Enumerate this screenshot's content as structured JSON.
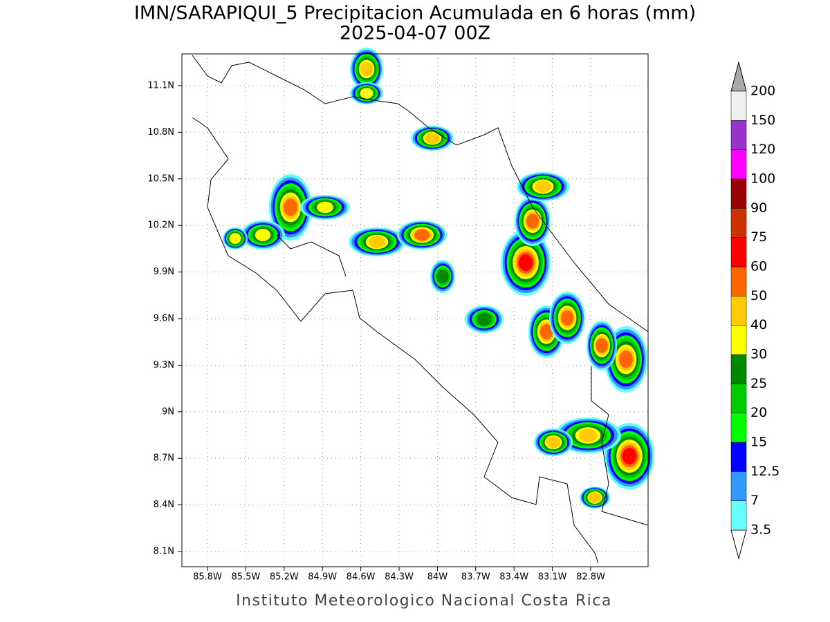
{
  "title": "IMN/SARAPIQUI_5 Precipitacion Acumulada en 6 horas (mm)",
  "subtitle": "2025-04-07 00Z",
  "footer": "Instituto Meteorologico Nacional Costa Rica",
  "map": {
    "lat_labels": [
      "11.1N",
      "10.8N",
      "10.5N",
      "10.2N",
      "9.9N",
      "9.6N",
      "9.3N",
      "9N",
      "8.7N",
      "8.4N",
      "8.1N"
    ],
    "lon_labels": [
      "85.8W",
      "85.5W",
      "85.2W",
      "84.9W",
      "84.6W",
      "84.3W",
      "84W",
      "83.7W",
      "83.4W",
      "83.1W",
      "82.8W"
    ]
  },
  "colorbar": {
    "levels": [
      3.5,
      7,
      12.5,
      15,
      20,
      25,
      30,
      40,
      50,
      60,
      75,
      90,
      100,
      120,
      150,
      200
    ],
    "colors": [
      "#ffffff",
      "#66ffff",
      "#3399ff",
      "#0000ff",
      "#00ff00",
      "#00cc00",
      "#008800",
      "#ffff00",
      "#ffcc00",
      "#ff6600",
      "#ff0000",
      "#cc3300",
      "#990000",
      "#ff00ff",
      "#9933cc",
      "#f0f0f0",
      "#aaaaaa"
    ]
  }
}
